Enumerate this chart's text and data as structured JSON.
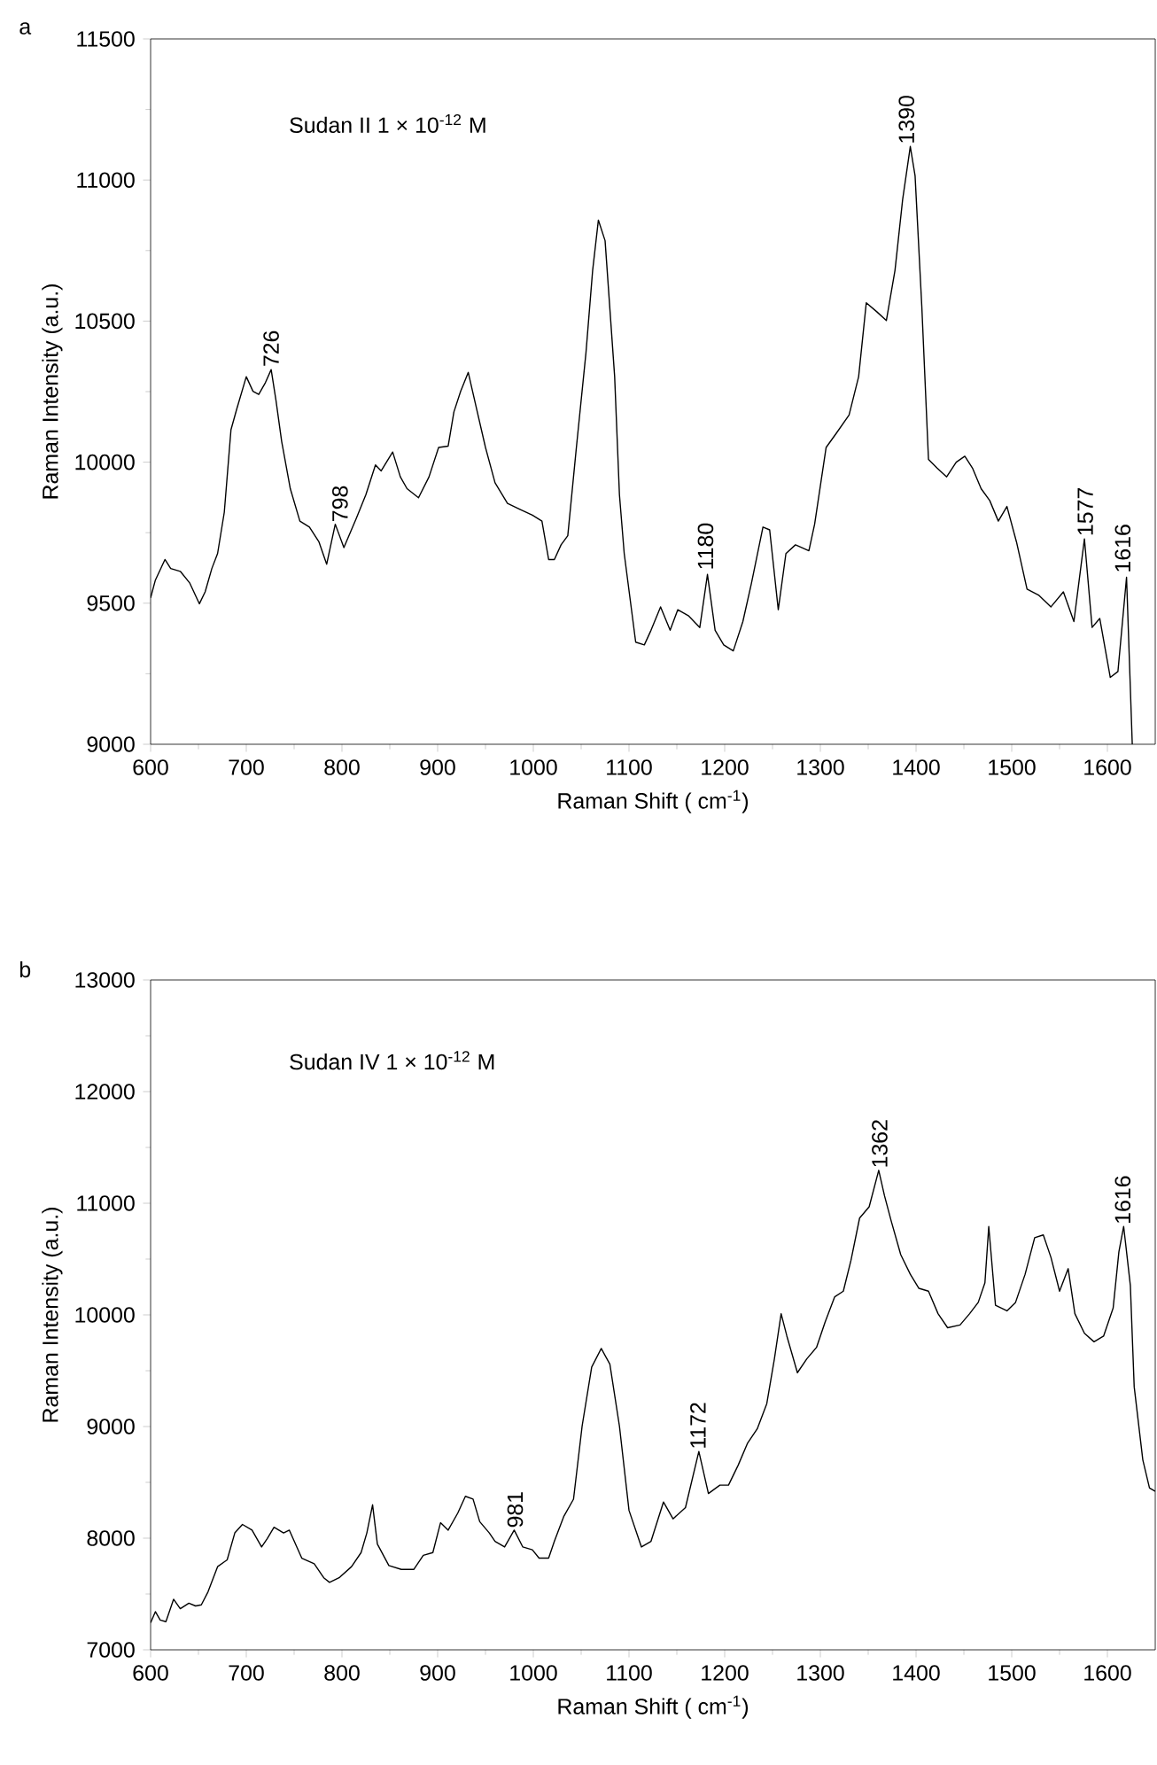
{
  "chart_data": [
    {
      "type": "line",
      "title": "a",
      "xlabel": "Raman Shift ( cm$^{-1}$)",
      "ylabel": "Raman Intensity (a.u.)",
      "xlim": [
        600,
        1650
      ],
      "ylim": [
        9000,
        11500
      ],
      "xticks": [
        600,
        700,
        800,
        900,
        1000,
        1100,
        1200,
        1300,
        1400,
        1500,
        1600
      ],
      "yticks": [
        9000,
        9500,
        10000,
        10500,
        11000,
        11500
      ],
      "annotations": [
        "Sudan II    1 × 10$^{-12}$ M",
        {
          "text": "726",
          "x": 726,
          "y": 10330
        },
        {
          "text": "798",
          "x": 798,
          "y": 9780
        },
        {
          "text": "1180",
          "x": 1180,
          "y": 9610
        },
        {
          "text": "1390",
          "x": 1390,
          "y": 11120
        },
        {
          "text": "1577",
          "x": 1577,
          "y": 9730
        },
        {
          "text": "1616",
          "x": 1616,
          "y": 9600
        }
      ],
      "series": [
        {
          "color": "#000000",
          "x": [
            600,
            605,
            615,
            621,
            631,
            641,
            651,
            657,
            664,
            670,
            677,
            684,
            690,
            700,
            707,
            713,
            720,
            726,
            731,
            737,
            746,
            756,
            766,
            776,
            784,
            789,
            793,
            802,
            815,
            825,
            835,
            841,
            853,
            861,
            868,
            880,
            891,
            901,
            911,
            917,
            924,
            932,
            940,
            950,
            960,
            973,
            986,
            999,
            1009,
            1016,
            1022,
            1029,
            1036,
            1045,
            1055,
            1062,
            1068,
            1075,
            1085,
            1090,
            1095,
            1107,
            1116,
            1123,
            1133,
            1143,
            1151,
            1162,
            1174,
            1182,
            1190,
            1199,
            1209,
            1219,
            1228,
            1240,
            1247,
            1256,
            1264,
            1274,
            1288,
            1294,
            1306,
            1317,
            1330,
            1340,
            1348,
            1359,
            1369,
            1378,
            1386,
            1394,
            1399,
            1406,
            1413,
            1422,
            1432,
            1442,
            1451,
            1459,
            1468,
            1477,
            1486,
            1495,
            1505,
            1516,
            1528,
            1541,
            1554,
            1565,
            1576,
            1584,
            1592,
            1603,
            1611,
            1620,
            1626
          ],
          "values": [
            9519,
            9582,
            9655,
            9623,
            9613,
            9571,
            9498,
            9540,
            9623,
            9676,
            9822,
            10115,
            10188,
            10303,
            10251,
            10240,
            10282,
            10328,
            10220,
            10073,
            9906,
            9791,
            9770,
            9717,
            9638,
            9717,
            9780,
            9697,
            9801,
            9885,
            9990,
            9969,
            10036,
            9948,
            9906,
            9874,
            9948,
            10052,
            10057,
            10178,
            10251,
            10318,
            10199,
            10052,
            9927,
            9854,
            9833,
            9812,
            9791,
            9655,
            9655,
            9707,
            9739,
            10052,
            10387,
            10680,
            10858,
            10785,
            10303,
            9885,
            9676,
            9362,
            9352,
            9404,
            9487,
            9404,
            9477,
            9456,
            9414,
            9602,
            9404,
            9352,
            9331,
            9435,
            9571,
            9770,
            9760,
            9477,
            9676,
            9707,
            9686,
            9780,
            10052,
            10104,
            10167,
            10303,
            10565,
            10533,
            10502,
            10680,
            10931,
            11119,
            11015,
            10554,
            10010,
            9979,
            9948,
            10000,
            10021,
            9979,
            9906,
            9864,
            9791,
            9843,
            9717,
            9550,
            9529,
            9487,
            9540,
            9435,
            9728,
            9414,
            9446,
            9237,
            9258,
            9592,
            9000
          ]
        }
      ]
    },
    {
      "type": "line",
      "title": "b",
      "xlabel": "Raman Shift ( cm$^{-1}$)",
      "ylabel": "Raman Intensity (a.u.)",
      "xlim": [
        600,
        1650
      ],
      "ylim": [
        7000,
        13000
      ],
      "xticks": [
        600,
        700,
        800,
        900,
        1000,
        1100,
        1200,
        1300,
        1400,
        1500,
        1600
      ],
      "yticks": [
        7000,
        8000,
        9000,
        10000,
        11000,
        12000,
        13000
      ],
      "annotations": [
        "Sudan IV    1 × 10$^{-12}$ M",
        {
          "text": "981",
          "x": 981,
          "y": 8072
        },
        {
          "text": "1172",
          "x": 1172,
          "y": 8777
        },
        {
          "text": "1362",
          "x": 1362,
          "y": 11295
        },
        {
          "text": "1616",
          "x": 1616,
          "y": 10792
        }
      ],
      "series": [
        {
          "color": "#000000",
          "x": [
            600,
            605,
            610,
            616,
            624,
            631,
            640,
            647,
            653,
            660,
            670,
            680,
            688,
            696,
            706,
            716,
            722,
            729,
            739,
            745,
            758,
            771,
            781,
            787,
            797,
            810,
            820,
            826,
            832,
            837,
            849,
            862,
            875,
            885,
            895,
            903,
            911,
            921,
            929,
            937,
            944,
            954,
            960,
            970,
            980,
            989,
            999,
            1006,
            1016,
            1022,
            1032,
            1042,
            1051,
            1061,
            1071,
            1080,
            1090,
            1100,
            1113,
            1123,
            1136,
            1146,
            1159,
            1173,
            1183,
            1195,
            1204,
            1214,
            1224,
            1234,
            1244,
            1252,
            1259,
            1265,
            1276,
            1286,
            1296,
            1305,
            1315,
            1324,
            1332,
            1341,
            1351,
            1361,
            1367,
            1374,
            1384,
            1394,
            1403,
            1413,
            1423,
            1433,
            1446,
            1456,
            1465,
            1472,
            1476,
            1483,
            1495,
            1504,
            1514,
            1524,
            1533,
            1541,
            1550,
            1559,
            1566,
            1576,
            1586,
            1596,
            1606,
            1612,
            1617,
            1624,
            1628,
            1637,
            1644,
            1650
          ],
          "values": [
            7242,
            7342,
            7267,
            7252,
            7453,
            7368,
            7418,
            7393,
            7403,
            7519,
            7745,
            7806,
            8047,
            8123,
            8072,
            7921,
            7997,
            8098,
            8047,
            8072,
            7821,
            7770,
            7645,
            7604,
            7645,
            7745,
            7871,
            8047,
            8299,
            7947,
            7755,
            7720,
            7720,
            7846,
            7871,
            8138,
            8072,
            8224,
            8375,
            8350,
            8148,
            8047,
            7972,
            7921,
            8072,
            7921,
            7896,
            7821,
            7821,
            7972,
            8198,
            8349,
            9004,
            9533,
            9699,
            9558,
            9004,
            8249,
            7921,
            7972,
            8324,
            8173,
            8274,
            8777,
            8400,
            8475,
            8475,
            8652,
            8853,
            8979,
            9205,
            9608,
            10011,
            9810,
            9482,
            9608,
            9709,
            9936,
            10162,
            10212,
            10489,
            10867,
            10968,
            11295,
            11068,
            10842,
            10540,
            10364,
            10238,
            10212,
            10011,
            9885,
            9910,
            10011,
            10112,
            10288,
            10792,
            10087,
            10036,
            10112,
            10364,
            10691,
            10716,
            10515,
            10212,
            10414,
            10011,
            9835,
            9759,
            9810,
            10061,
            10565,
            10792,
            10263,
            9356,
            8702,
            8450,
            8420
          ]
        }
      ]
    }
  ]
}
